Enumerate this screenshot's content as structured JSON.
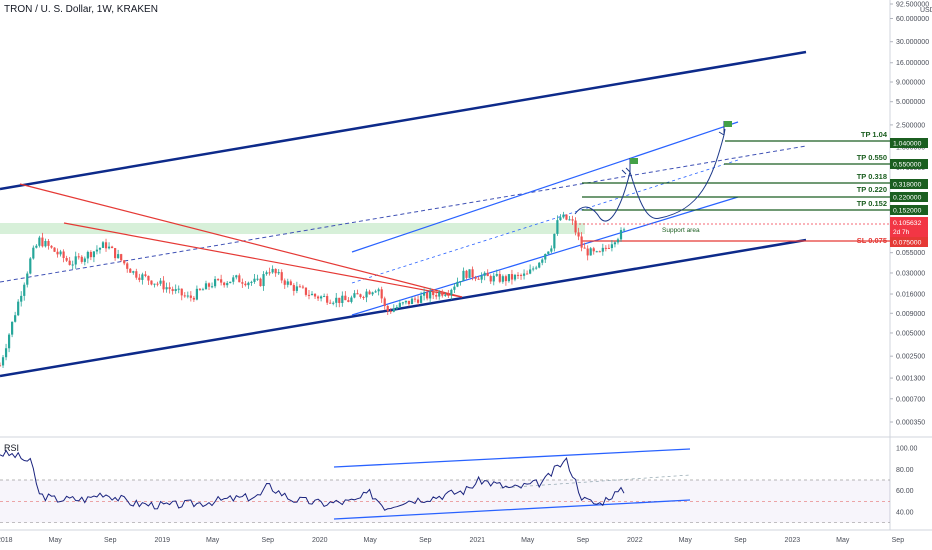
{
  "header": {
    "title": "TRON / U. S. Dollar, 1W, KRAKEN"
  },
  "rsi_label": "RSI",
  "colors": {
    "up": "#26a69a",
    "down": "#ef5350",
    "channel": "#0d2a8a",
    "inner": "#2962ff",
    "tp": "#1b5e20",
    "sl": "#e53935",
    "rsi": "#1a237e",
    "support": "#b7e3b9"
  },
  "chart_data": [
    {
      "type": "candlestick",
      "title": "TRON / U. S. Dollar, 1W, KRAKEN",
      "yscale": "log",
      "y_unit": "USD",
      "y_ticks": [
        "92.500000",
        "60.000000",
        "30.000000",
        "16.000000",
        "9.000000",
        "5.000000",
        "2.500000",
        "1.300000",
        "0.700000",
        "0.400000",
        "0.200000",
        "0.100000",
        "0.055000",
        "0.030000",
        "0.016000",
        "0.009000",
        "0.005000",
        "0.002500",
        "0.001300",
        "0.000700",
        "0.000350"
      ],
      "x_ticks": [
        "2018",
        "May",
        "Sep",
        "2019",
        "May",
        "Sep",
        "2020",
        "May",
        "Sep",
        "2021",
        "May",
        "Sep",
        "2022",
        "May",
        "Sep",
        "2023",
        "May",
        "Sep"
      ],
      "levels": [
        {
          "name": "TP 1.04",
          "price_label": "1.040000",
          "value": 1.04
        },
        {
          "name": "TP 0.550",
          "price_label": "0.550000",
          "value": 0.55
        },
        {
          "name": "TP 0.318",
          "price_label": "0.318000",
          "value": 0.318
        },
        {
          "name": "TP 0.220",
          "price_label": "0.220000",
          "value": 0.22
        },
        {
          "name": "TP 0.152",
          "price_label": "0.152000",
          "value": 0.152
        },
        {
          "name": "SL 0.075",
          "price_label": "0.075000",
          "value": 0.075
        }
      ],
      "current_price": {
        "label": "0.105632",
        "countdown": "2d 7h",
        "value": 0.105632
      },
      "annotations": [
        "Support area"
      ],
      "path": [
        [
          2017.75,
          0.0019
        ],
        [
          2017.95,
          0.05
        ],
        [
          2018.0,
          0.08
        ],
        [
          2018.2,
          0.04
        ],
        [
          2018.42,
          0.07
        ],
        [
          2018.6,
          0.03
        ],
        [
          2018.8,
          0.02
        ],
        [
          2018.95,
          0.014
        ],
        [
          2019.1,
          0.022
        ],
        [
          2019.25,
          0.025
        ],
        [
          2019.4,
          0.022
        ],
        [
          2019.45,
          0.035
        ],
        [
          2019.6,
          0.02
        ],
        [
          2019.75,
          0.015
        ],
        [
          2019.95,
          0.013
        ],
        [
          2020.15,
          0.02
        ],
        [
          2020.2,
          0.0095
        ],
        [
          2020.4,
          0.014
        ],
        [
          2020.6,
          0.018
        ],
        [
          2020.7,
          0.03
        ],
        [
          2020.85,
          0.026
        ],
        [
          2020.95,
          0.025
        ],
        [
          2021.1,
          0.028
        ],
        [
          2021.25,
          0.07
        ],
        [
          2021.3,
          0.16
        ],
        [
          2021.38,
          0.14
        ],
        [
          2021.45,
          0.06
        ],
        [
          2021.55,
          0.05
        ],
        [
          2021.65,
          0.085
        ],
        [
          2021.72,
          0.105
        ]
      ]
    },
    {
      "type": "line",
      "name": "RSI",
      "y_ticks": [
        "100.00",
        "80.00",
        "60.00",
        "40.00"
      ],
      "x": [
        2017.75,
        2017.85,
        2017.95,
        2018.0,
        2018.1,
        2018.3,
        2018.4,
        2018.6,
        2018.8,
        2019.0,
        2019.2,
        2019.4,
        2019.45,
        2019.6,
        2019.8,
        2020.0,
        2020.1,
        2020.2,
        2020.3,
        2020.5,
        2020.7,
        2020.8,
        2021.0,
        2021.2,
        2021.3,
        2021.35,
        2021.45,
        2021.55,
        2021.62,
        2021.72
      ],
      "values": [
        95,
        93,
        86,
        56,
        52,
        52,
        58,
        48,
        46,
        48,
        52,
        55,
        65,
        52,
        48,
        50,
        58,
        44,
        50,
        54,
        60,
        70,
        62,
        68,
        84,
        88,
        52,
        47,
        55,
        61
      ]
    }
  ]
}
